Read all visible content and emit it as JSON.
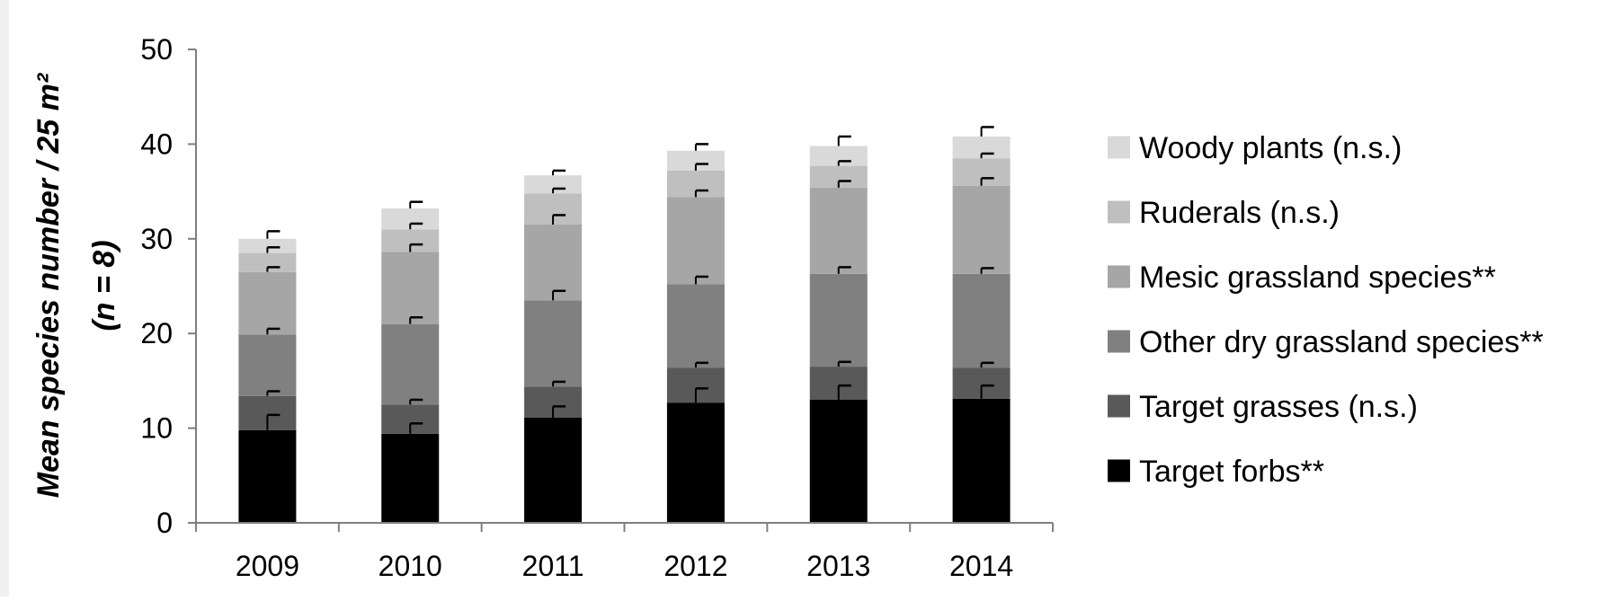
{
  "chart_data": {
    "type": "bar",
    "stacked": true,
    "categories": [
      "2009",
      "2010",
      "2011",
      "2012",
      "2013",
      "2014"
    ],
    "ylabel_line1": "Mean species number / 25 m²",
    "ylabel_line2": "(n = 8)",
    "ylim": [
      0,
      50
    ],
    "yticks": [
      "0",
      "10",
      "20",
      "30",
      "40",
      "50"
    ],
    "grid": false,
    "legend_position": "right",
    "series": [
      {
        "name": "Target  forbs**",
        "color": "#000000",
        "values": [
          9.8,
          9.4,
          11.1,
          12.7,
          13.0,
          13.1
        ],
        "errors": [
          1.6,
          1.1,
          1.2,
          1.5,
          1.5,
          1.4
        ]
      },
      {
        "name": "Target  grasses (n.s.)",
        "color": "#595959",
        "values": [
          3.6,
          3.1,
          3.3,
          3.7,
          3.5,
          3.3
        ],
        "errors": [
          0.5,
          0.5,
          0.5,
          0.5,
          0.5,
          0.5
        ]
      },
      {
        "name": "Other dry grassland species**",
        "color": "#808080",
        "values": [
          6.5,
          8.5,
          9.1,
          8.8,
          9.8,
          9.9
        ],
        "errors": [
          0.6,
          0.7,
          1.0,
          0.8,
          0.7,
          0.6
        ]
      },
      {
        "name": "Mesic grassland species**",
        "color": "#a6a6a6",
        "values": [
          6.6,
          7.6,
          8.0,
          9.2,
          9.1,
          9.3
        ],
        "errors": [
          0.5,
          0.8,
          1.0,
          0.7,
          0.7,
          0.8
        ]
      },
      {
        "name": "Ruderals (n.s.)",
        "color": "#bfbfbf",
        "values": [
          2.0,
          2.4,
          3.3,
          2.8,
          2.3,
          2.9
        ],
        "errors": [
          0.6,
          0.6,
          0.5,
          0.7,
          0.5,
          0.5
        ]
      },
      {
        "name": "Woody plants (n.s.)",
        "color": "#d9d9d9",
        "values": [
          1.5,
          2.2,
          1.9,
          2.1,
          2.1,
          2.3
        ],
        "errors": [
          0.8,
          0.7,
          0.5,
          0.7,
          1.0,
          1.0
        ]
      }
    ]
  }
}
